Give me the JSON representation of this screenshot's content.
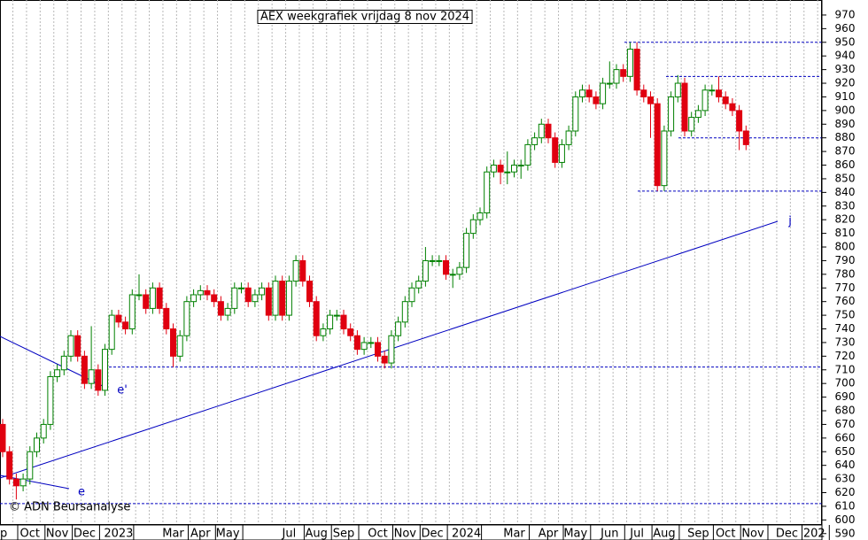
{
  "chart_data": {
    "type": "candlestick",
    "title": "AEX weekgrafiek vrijdag 8 nov 2024",
    "credit": "© ADN Beursanalyse",
    "categories": [
      "p",
      null,
      null,
      null,
      "Oct",
      null,
      null,
      null,
      "Nov",
      null,
      null,
      null,
      "Dec",
      null,
      null,
      null,
      null,
      "2023",
      null,
      null,
      null,
      null,
      null,
      null,
      null,
      "Mar",
      null,
      null,
      null,
      "Apr",
      null,
      null,
      null,
      "May",
      null,
      null,
      null,
      null,
      null,
      null,
      null,
      null,
      "Jul",
      null,
      null,
      null,
      "Aug",
      null,
      null,
      null,
      "Sep",
      null,
      null,
      null,
      null,
      "Oct",
      null,
      null,
      null,
      "Nov",
      null,
      null,
      null,
      "Dec",
      null,
      null,
      null,
      null,
      "2024",
      null,
      null,
      null,
      null,
      null,
      null,
      "Mar",
      null,
      null,
      null,
      null,
      "Apr",
      null,
      null,
      null,
      "May",
      null,
      null,
      null,
      null,
      "Jun",
      null,
      null,
      null,
      "Jul",
      null,
      null,
      null,
      "Aug",
      null,
      null,
      null,
      null,
      "Sep",
      null,
      null,
      null,
      "Oct",
      null,
      null,
      null,
      "Nov",
      null,
      null,
      null,
      null,
      "Dec",
      null,
      null,
      null,
      "202"
    ],
    "open": [
      670,
      650,
      630,
      625,
      630,
      650,
      660,
      670,
      705,
      710,
      720,
      735,
      720,
      700,
      710,
      695,
      725,
      750,
      745,
      740,
      765,
      765,
      755,
      770,
      755,
      740,
      720,
      735,
      760,
      765,
      768,
      765,
      760,
      750,
      755,
      770,
      770,
      760,
      765,
      770,
      750,
      775,
      750,
      775,
      790,
      775,
      760,
      735,
      740,
      750,
      750,
      740,
      735,
      725,
      730,
      730,
      720,
      715,
      735,
      745,
      760,
      770,
      775,
      790,
      790,
      790,
      780,
      780,
      785,
      810,
      820,
      825,
      855,
      860,
      855,
      855,
      860,
      860,
      875,
      880,
      890,
      880,
      862,
      875,
      885,
      910,
      915,
      910,
      905,
      920,
      920,
      930,
      925,
      945,
      915,
      910,
      905,
      845,
      885,
      910,
      920,
      885,
      895,
      900,
      915,
      915,
      910,
      905,
      900,
      885,
      null,
      null,
      null,
      null,
      null,
      null,
      null,
      null,
      null,
      null
    ],
    "high": [
      674,
      654,
      634,
      634,
      654,
      664,
      674,
      709,
      714,
      724,
      739,
      739,
      724,
      742,
      714,
      729,
      754,
      754,
      749,
      769,
      780,
      769,
      774,
      774,
      759,
      744,
      739,
      764,
      769,
      772,
      772,
      769,
      764,
      759,
      774,
      774,
      774,
      769,
      774,
      774,
      779,
      779,
      779,
      794,
      794,
      779,
      764,
      744,
      754,
      754,
      754,
      744,
      739,
      734,
      734,
      734,
      724,
      739,
      749,
      764,
      774,
      779,
      800,
      794,
      794,
      794,
      784,
      789,
      814,
      824,
      829,
      859,
      864,
      864,
      870,
      864,
      864,
      879,
      884,
      894,
      894,
      884,
      879,
      889,
      914,
      919,
      919,
      914,
      924,
      936,
      934,
      934,
      950,
      950,
      919,
      914,
      909,
      889,
      914,
      926,
      924,
      899,
      904,
      919,
      919,
      925,
      914,
      909,
      904,
      889,
      null,
      null,
      null,
      null,
      null,
      null,
      null,
      null,
      null,
      null
    ],
    "low": [
      646,
      626,
      615,
      621,
      626,
      646,
      656,
      666,
      701,
      706,
      716,
      716,
      696,
      696,
      691,
      691,
      721,
      741,
      736,
      736,
      761,
      751,
      751,
      751,
      736,
      712,
      716,
      731,
      756,
      761,
      761,
      756,
      746,
      746,
      751,
      766,
      756,
      756,
      761,
      746,
      746,
      746,
      746,
      771,
      771,
      756,
      731,
      731,
      736,
      746,
      736,
      731,
      721,
      721,
      726,
      716,
      711,
      711,
      731,
      741,
      756,
      766,
      771,
      786,
      786,
      776,
      770,
      776,
      781,
      806,
      816,
      821,
      851,
      846,
      846,
      851,
      850,
      856,
      871,
      876,
      876,
      858,
      858,
      871,
      881,
      906,
      906,
      901,
      901,
      916,
      916,
      921,
      921,
      911,
      906,
      880,
      841,
      841,
      881,
      906,
      881,
      881,
      891,
      896,
      911,
      906,
      901,
      896,
      871,
      871,
      null,
      null,
      null,
      null,
      null,
      null,
      null,
      null,
      null,
      null
    ],
    "close": [
      650,
      630,
      625,
      630,
      650,
      660,
      670,
      705,
      710,
      720,
      735,
      720,
      700,
      710,
      695,
      725,
      750,
      745,
      740,
      765,
      765,
      755,
      770,
      755,
      740,
      720,
      735,
      760,
      765,
      768,
      765,
      760,
      750,
      755,
      770,
      770,
      760,
      765,
      770,
      750,
      775,
      750,
      775,
      790,
      775,
      760,
      735,
      740,
      750,
      750,
      740,
      735,
      725,
      730,
      730,
      720,
      715,
      735,
      745,
      760,
      770,
      775,
      790,
      790,
      790,
      780,
      780,
      785,
      810,
      820,
      825,
      855,
      860,
      855,
      855,
      860,
      860,
      875,
      880,
      890,
      880,
      862,
      875,
      885,
      910,
      915,
      910,
      905,
      920,
      920,
      930,
      925,
      945,
      915,
      910,
      905,
      845,
      885,
      910,
      920,
      885,
      895,
      900,
      915,
      915,
      910,
      905,
      900,
      885,
      875,
      null,
      null,
      null,
      null,
      null,
      null,
      null,
      null,
      null,
      null
    ],
    "up_color": "#008000",
    "down_color": "#e00010",
    "levels": [
      950,
      925,
      880,
      841,
      712,
      612
    ],
    "annotations": [
      "e'",
      "e",
      "j"
    ],
    "ylim": [
      584,
      981
    ],
    "yticks": [
      590,
      600,
      610,
      620,
      630,
      640,
      650,
      660,
      670,
      680,
      690,
      700,
      710,
      720,
      730,
      740,
      750,
      760,
      770,
      780,
      790,
      800,
      810,
      820,
      830,
      840,
      850,
      860,
      870,
      880,
      890,
      900,
      910,
      920,
      930,
      940,
      950,
      960,
      970
    ],
    "grid": true
  }
}
